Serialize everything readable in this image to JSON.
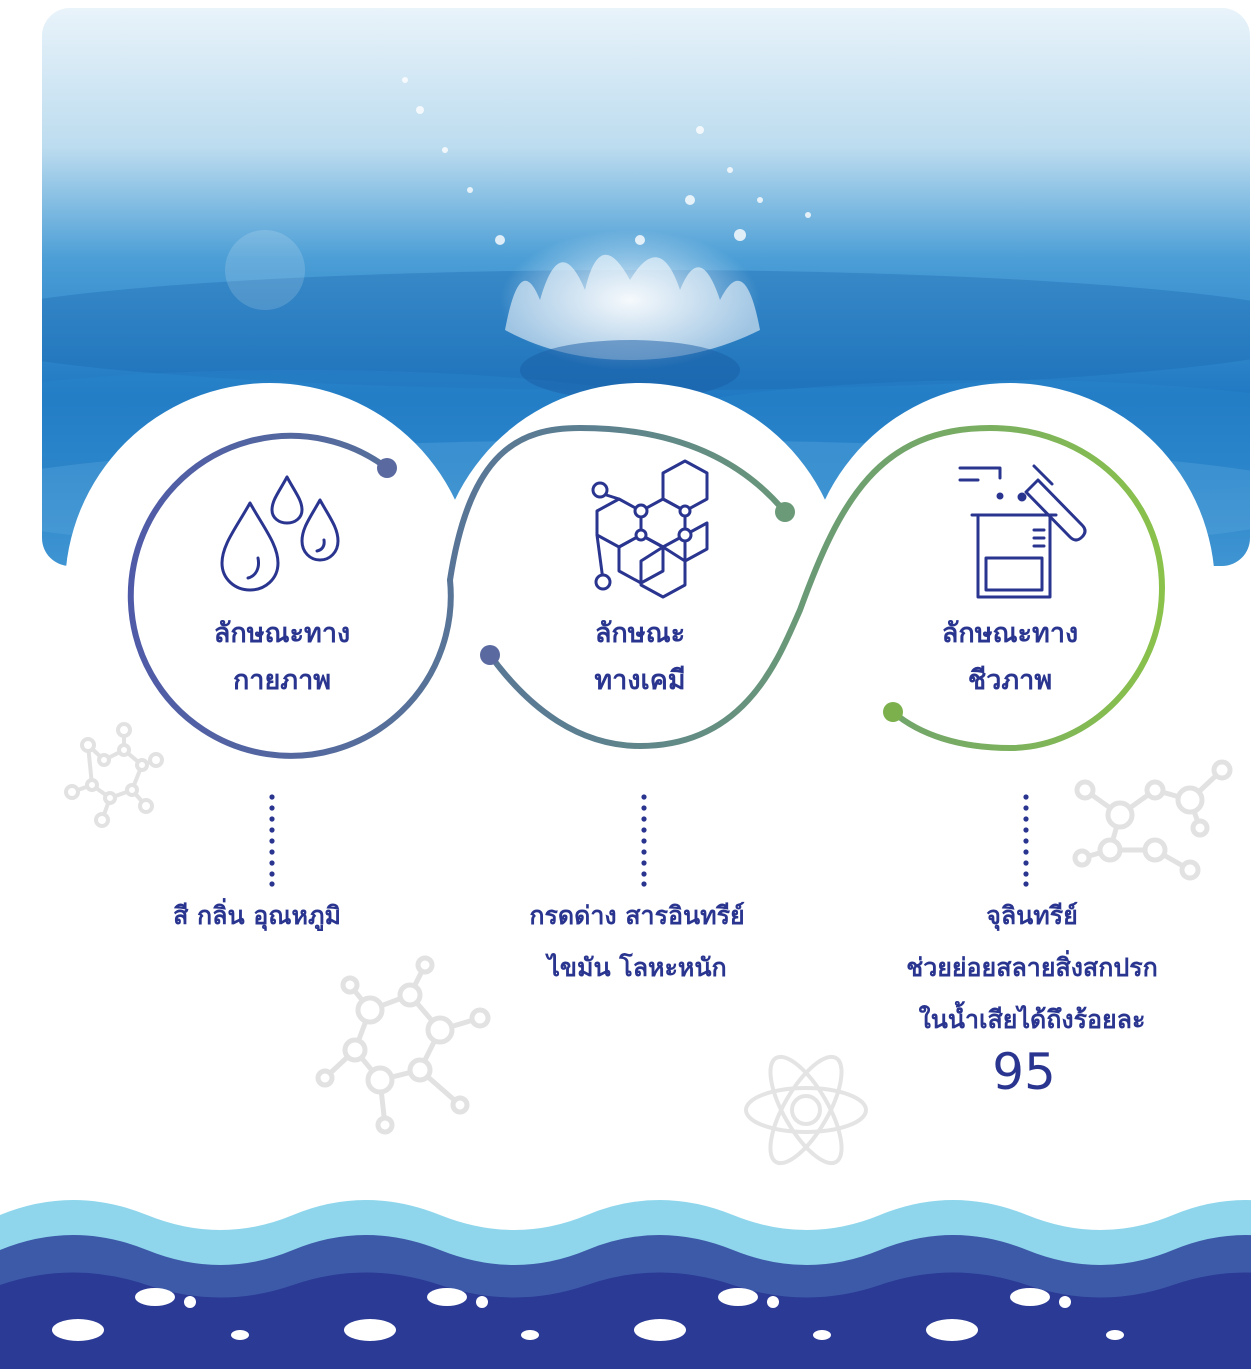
{
  "colors": {
    "navy": "#2a3590",
    "indigo": "#5a63b0",
    "teal": "#6a8f88",
    "green": "#8bc34a",
    "water_light": "#8fd6ec",
    "water_mid": "#3d5aa8",
    "water_dark": "#2a3a95",
    "molecule_grey": "#e4e4e4"
  },
  "sections": [
    {
      "id": "physical",
      "icon": "water-drops-icon",
      "title_line1": "ลักษณะทาง",
      "title_line2": "กายภาพ",
      "desc_lines": [
        "สี กลิ่น อุณหภูมิ"
      ]
    },
    {
      "id": "chemical",
      "icon": "molecule-structure-icon",
      "title_line1": "ลักษณะ",
      "title_line2": "ทางเคมี",
      "desc_lines": [
        "กรดด่าง สารอินทรีย์",
        "ไขมัน โลหะหนัก"
      ]
    },
    {
      "id": "biological",
      "icon": "lab-beaker-test-tube-icon",
      "title_line1": "ลักษณะทาง",
      "title_line2": "ชีวภาพ",
      "desc_lines": [
        "จุลินทรีย์",
        "ช่วยย่อยสลายสิ่งสกปรก",
        "ในน้ำเสียได้ถึงร้อยละ"
      ],
      "highlight_number": "95"
    }
  ]
}
